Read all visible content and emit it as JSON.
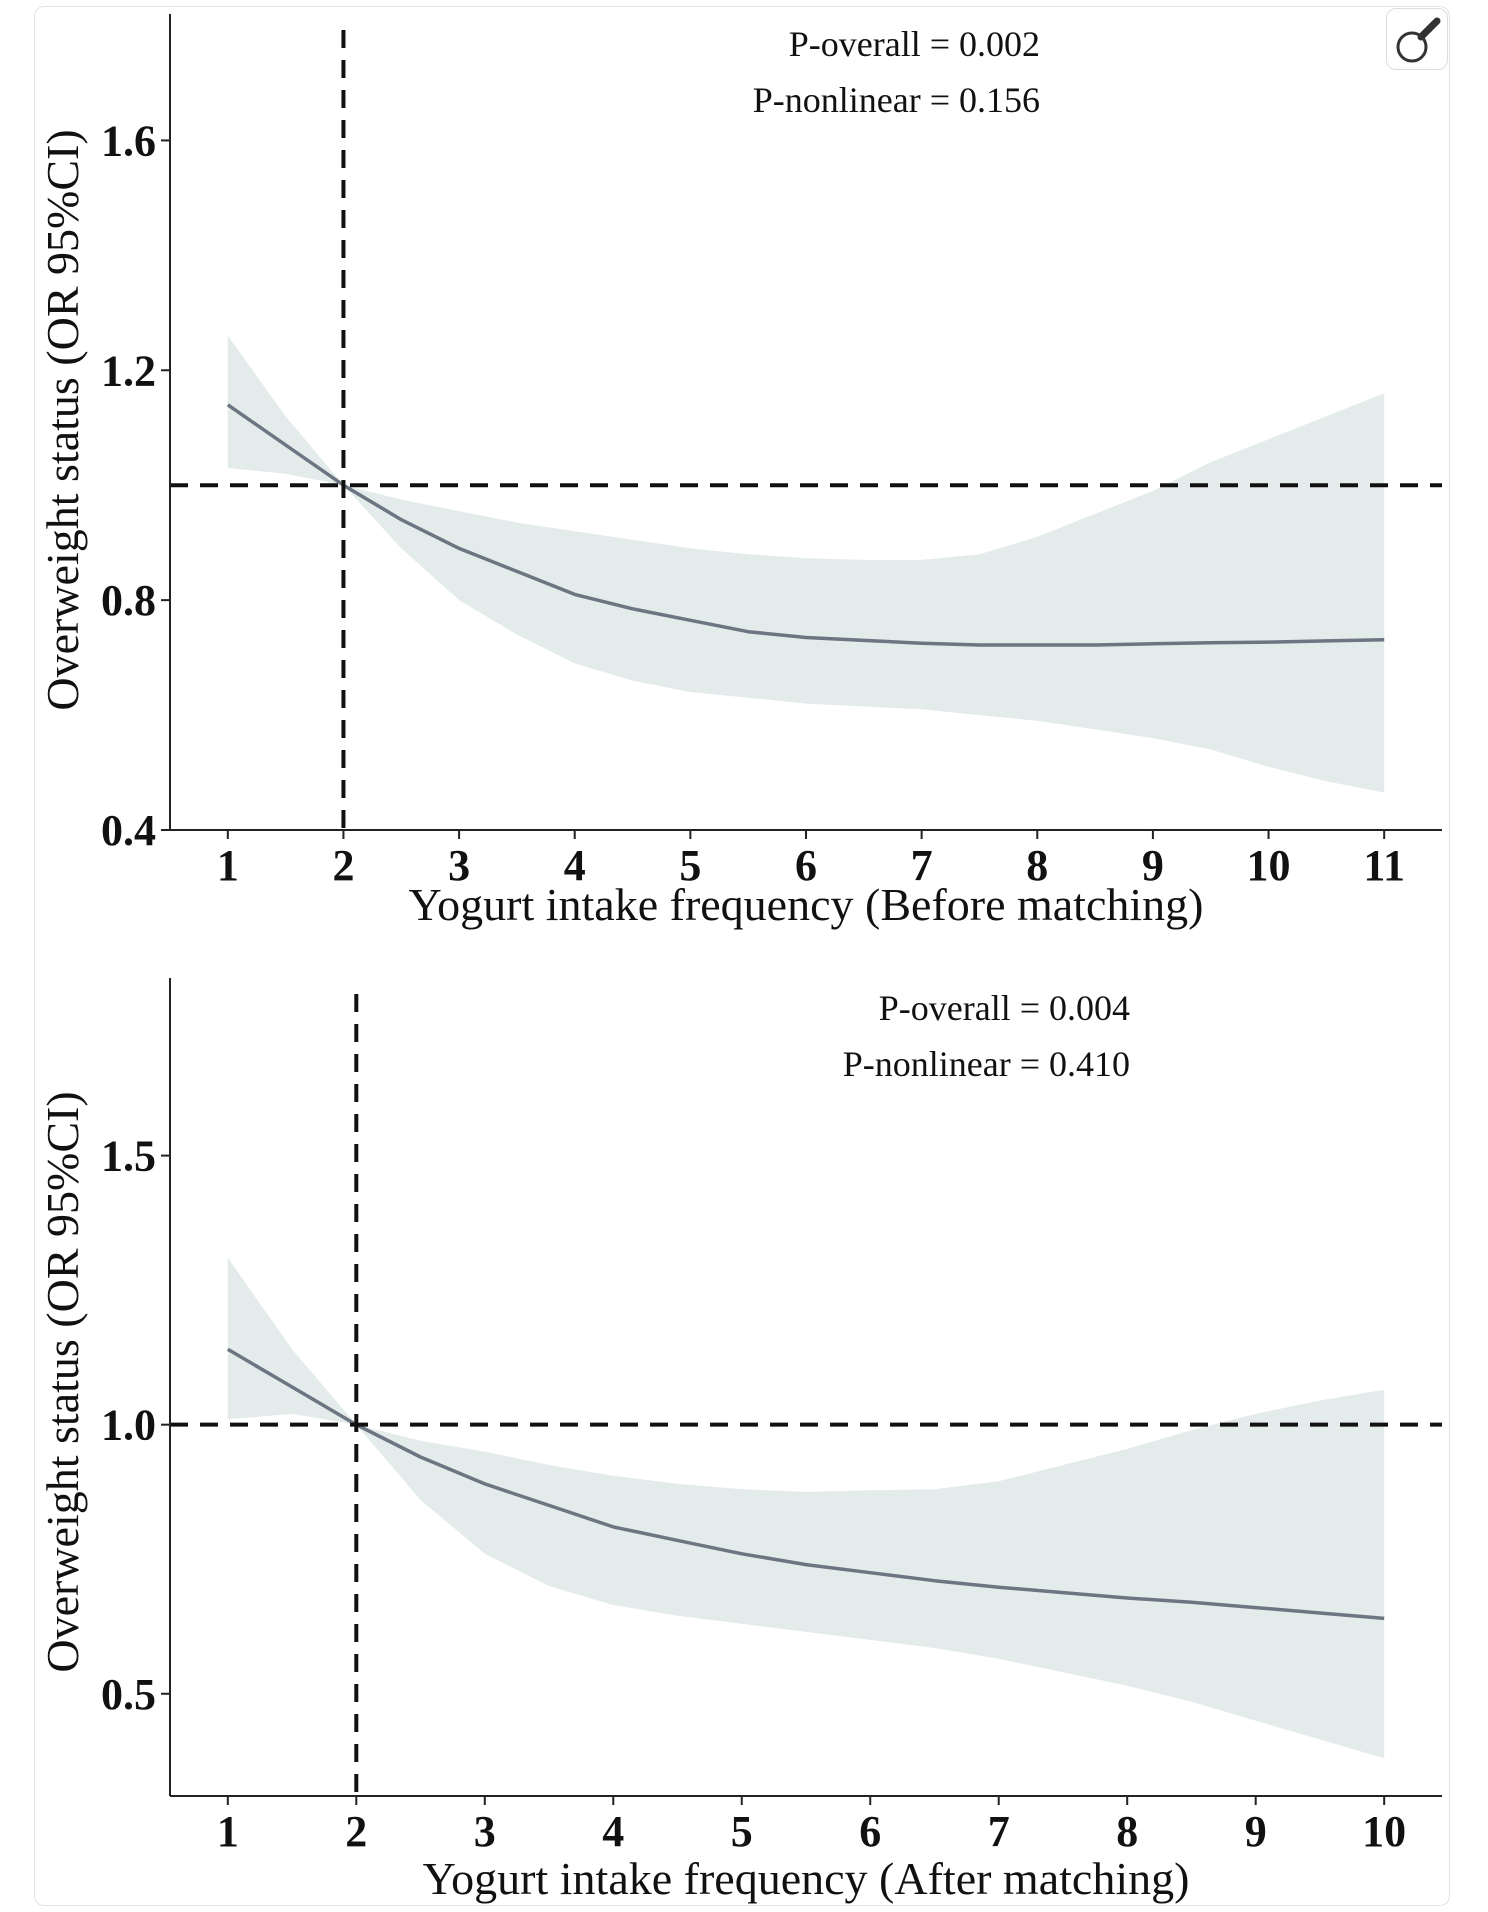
{
  "colors": {
    "ci_band": "#e3ebeb",
    "curve": "#6b7682",
    "reference_lines": "#111111",
    "axes": "#222222"
  },
  "toolbar": {
    "magnify_icon": "magnifier-icon"
  },
  "chart_data": [
    {
      "type": "line",
      "xlabel": "Yogurt intake frequency (Before matching)",
      "ylabel": "Overweight status (OR 95%CI)",
      "x_ticks": [
        1,
        2,
        3,
        4,
        5,
        6,
        7,
        8,
        9,
        10,
        11
      ],
      "y_ticks": [
        0.4,
        0.8,
        1.2,
        1.6
      ],
      "y_tick_labels": [
        "0.4",
        "0.8",
        "1.2",
        "1.6"
      ],
      "xlim": [
        0.5,
        11.5
      ],
      "ylim": [
        0.4,
        1.82
      ],
      "annotations": [
        "P-overall = 0.002",
        "P-nonlinear = 0.156"
      ],
      "reference_lines": {
        "x": 2,
        "y": 1.0
      },
      "grid": false,
      "series": [
        {
          "x": [
            1,
            1.5,
            2,
            2.5,
            3,
            3.5,
            4,
            4.5,
            5,
            5.5,
            6,
            6.5,
            7,
            7.5,
            8,
            8.5,
            9,
            9.5,
            10,
            10.5,
            11
          ],
          "y": [
            1.14,
            1.07,
            1.0,
            0.94,
            0.89,
            0.85,
            0.81,
            0.785,
            0.765,
            0.745,
            0.735,
            0.73,
            0.725,
            0.722,
            0.722,
            0.722,
            0.724,
            0.726,
            0.727,
            0.729,
            0.731
          ],
          "lower": [
            1.03,
            1.02,
            1.0,
            0.89,
            0.8,
            0.74,
            0.69,
            0.66,
            0.64,
            0.63,
            0.62,
            0.615,
            0.61,
            0.6,
            0.59,
            0.575,
            0.56,
            0.54,
            0.51,
            0.485,
            0.465
          ],
          "upper": [
            1.26,
            1.12,
            1.0,
            0.975,
            0.955,
            0.935,
            0.92,
            0.905,
            0.89,
            0.88,
            0.873,
            0.87,
            0.87,
            0.88,
            0.91,
            0.95,
            0.99,
            1.04,
            1.08,
            1.12,
            1.16
          ]
        }
      ]
    },
    {
      "type": "line",
      "xlabel": "Yogurt intake frequency (After matching)",
      "ylabel": "Overweight status (OR 95%CI)",
      "x_ticks": [
        1,
        2,
        3,
        4,
        5,
        6,
        7,
        8,
        9,
        10
      ],
      "y_ticks": [
        0.5,
        1.0,
        1.5
      ],
      "y_tick_labels": [
        "0.5",
        "1.0",
        "1.5"
      ],
      "xlim": [
        0.55,
        10.45
      ],
      "ylim": [
        0.31,
        1.83
      ],
      "annotations": [
        "P-overall = 0.004",
        "P-nonlinear = 0.410"
      ],
      "reference_lines": {
        "x": 2,
        "y": 1.0
      },
      "grid": false,
      "series": [
        {
          "x": [
            1,
            1.5,
            2,
            2.5,
            3,
            3.5,
            4,
            4.5,
            5,
            5.5,
            6,
            6.5,
            7,
            7.5,
            8,
            8.5,
            9,
            9.5,
            10
          ],
          "y": [
            1.14,
            1.07,
            1.0,
            0.94,
            0.89,
            0.85,
            0.81,
            0.785,
            0.76,
            0.74,
            0.725,
            0.71,
            0.698,
            0.688,
            0.678,
            0.67,
            0.66,
            0.65,
            0.64
          ],
          "lower": [
            1.01,
            1.02,
            1.0,
            0.86,
            0.76,
            0.7,
            0.665,
            0.645,
            0.63,
            0.615,
            0.6,
            0.585,
            0.565,
            0.54,
            0.515,
            0.485,
            0.45,
            0.415,
            0.38
          ],
          "upper": [
            1.31,
            1.14,
            1.0,
            0.97,
            0.95,
            0.925,
            0.905,
            0.89,
            0.88,
            0.875,
            0.878,
            0.88,
            0.895,
            0.925,
            0.955,
            0.99,
            1.02,
            1.045,
            1.065
          ]
        }
      ]
    }
  ]
}
